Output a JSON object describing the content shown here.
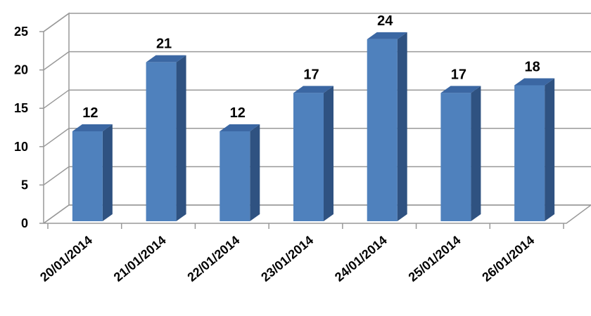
{
  "chart_data": {
    "type": "bar",
    "categories": [
      "20/01/2014",
      "21/01/2014",
      "22/01/2014",
      "23/01/2014",
      "24/01/2014",
      "25/01/2014",
      "26/01/2014"
    ],
    "values": [
      12,
      21,
      12,
      17,
      24,
      17,
      18
    ],
    "color": "#4f81bd",
    "ylim": [
      0,
      25
    ],
    "yticks": [
      0,
      5,
      10,
      15,
      20,
      25
    ],
    "grid": true
  }
}
